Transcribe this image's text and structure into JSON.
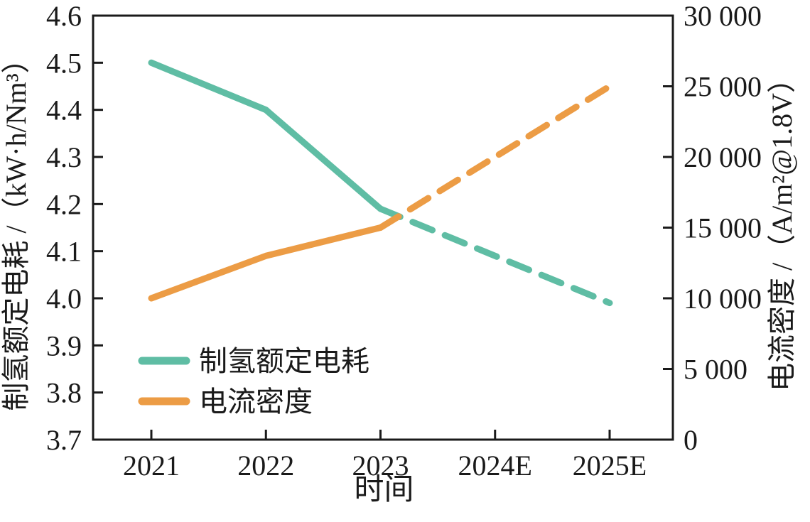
{
  "chart_data": {
    "type": "line",
    "title": "",
    "categories": [
      "2021",
      "2022",
      "2023",
      "2024E",
      "2025E"
    ],
    "x_axis": {
      "label": "时间",
      "tick_labels": [
        "2021",
        "2022",
        "2023",
        "2024E",
        "2025E"
      ]
    },
    "left_axis": {
      "label": "制氢额定电耗 /（kW·h/Nm³）",
      "min": 3.7,
      "max": 4.6,
      "step": 0.1,
      "tick_labels": [
        "4.6",
        "4.5",
        "4.4",
        "4.3",
        "4.2",
        "4.1",
        "4.0",
        "3.9",
        "3.8",
        "3.7"
      ]
    },
    "right_axis": {
      "label": "电流密度 /（A/m²@1.8V）",
      "min": 0,
      "max": 30000,
      "step": 5000,
      "tick_labels": [
        "30 000",
        "25 000",
        "20 000",
        "15 000",
        "10 000",
        "5 000",
        "0"
      ]
    },
    "series": [
      {
        "name": "制氢额定电耗",
        "axis": "left",
        "color": "#5FBDA4",
        "values": [
          4.5,
          4.4,
          4.19,
          4.09,
          3.99
        ],
        "dash_from_index": 2
      },
      {
        "name": "电流密度",
        "axis": "right",
        "color": "#EC9C45",
        "values": [
          10000,
          13000,
          15000,
          20000,
          25000
        ],
        "dash_from_index": 2
      }
    ],
    "legend": {
      "position": "lower-left",
      "items": [
        {
          "label": "制氢额定电耗",
          "color": "#5FBDA4"
        },
        {
          "label": "电流密度",
          "color": "#EC9C45"
        }
      ]
    },
    "grid": false,
    "axis_color": "#1a1a1a",
    "background": "#ffffff",
    "xlim_note": "categorical axis",
    "left_ylim": [
      3.7,
      4.6
    ],
    "right_ylim": [
      0,
      30000
    ]
  }
}
